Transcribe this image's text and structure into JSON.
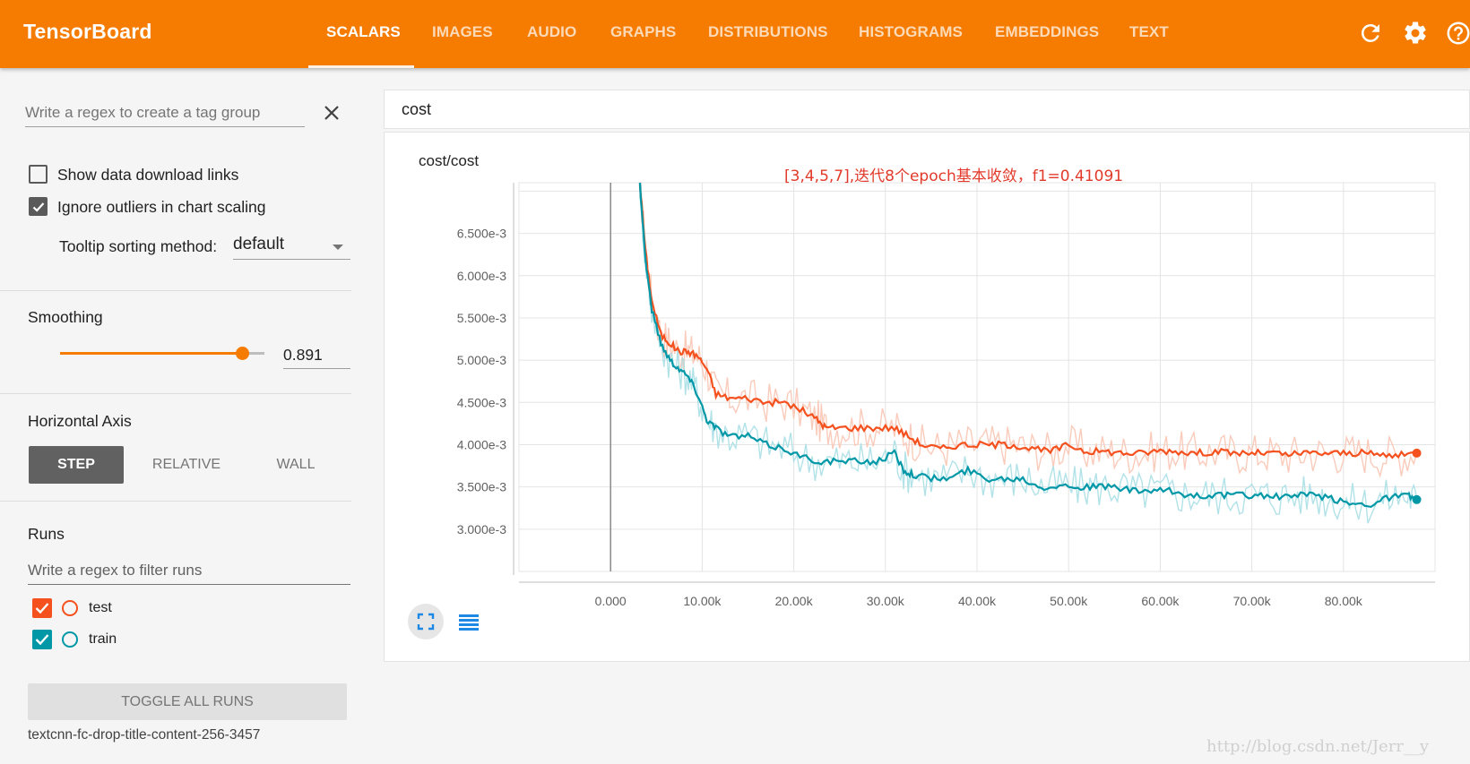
{
  "app": {
    "title": "TensorBoard"
  },
  "header": {
    "tabs": [
      {
        "label": "SCALARS",
        "active": true
      },
      {
        "label": "IMAGES"
      },
      {
        "label": "AUDIO"
      },
      {
        "label": "GRAPHS"
      },
      {
        "label": "DISTRIBUTIONS"
      },
      {
        "label": "HISTOGRAMS"
      },
      {
        "label": "EMBEDDINGS"
      },
      {
        "label": "TEXT"
      }
    ],
    "icons": [
      "refresh-icon",
      "settings-gear-icon",
      "help-icon"
    ]
  },
  "sidebar": {
    "tag_regex": {
      "placeholder": "Write a regex to create a tag group",
      "value": ""
    },
    "show_download_links": {
      "label": "Show data download links",
      "checked": false
    },
    "ignore_outliers": {
      "label": "Ignore outliers in chart scaling",
      "checked": true
    },
    "tooltip_sorting": {
      "label": "Tooltip sorting method:",
      "value": "default"
    },
    "smoothing": {
      "title": "Smoothing",
      "value": "0.891",
      "fraction": 0.891
    },
    "horizontal_axis": {
      "title": "Horizontal Axis",
      "options": [
        "STEP",
        "RELATIVE",
        "WALL"
      ],
      "selected": "STEP"
    },
    "runs": {
      "title": "Runs",
      "filter_placeholder": "Write a regex to filter runs",
      "items": [
        {
          "name": "test",
          "checked": true,
          "color": "#f4511e"
        },
        {
          "name": "train",
          "checked": true,
          "color": "#0097a7"
        }
      ],
      "toggle_label": "TOGGLE ALL RUNS",
      "log_dir": "textcnn-fc-drop-title-content-256-3457"
    }
  },
  "main": {
    "tag_group": "cost",
    "chart": {
      "title": "cost/cost",
      "annotation": "[3,4,5,7],迭代8个epoch基本收敛，f1=0.41091"
    }
  },
  "watermark": "http://blog.csdn.net/Jerr__y",
  "chart_data": {
    "type": "line",
    "title": "cost/cost",
    "xlabel": "",
    "ylabel": "",
    "x_tick_labels": [
      "0.000",
      "10.00k",
      "20.00k",
      "30.00k",
      "40.00k",
      "50.00k",
      "60.00k",
      "70.00k",
      "80.00k"
    ],
    "y_tick_labels": [
      "3.000e-3",
      "3.500e-3",
      "4.000e-3",
      "4.500e-3",
      "5.000e-3",
      "5.500e-3",
      "6.000e-3",
      "6.500e-3"
    ],
    "xlim": [
      -10000,
      90000
    ],
    "ylim": [
      0.0025,
      0.0071
    ],
    "grid": true,
    "series": [
      {
        "name": "test",
        "color": "#f4511e",
        "points": [
          [
            3200,
            0.0071
          ],
          [
            3800,
            0.0063
          ],
          [
            4500,
            0.0057
          ],
          [
            5500,
            0.0053
          ],
          [
            6500,
            0.0052
          ],
          [
            7500,
            0.0051
          ],
          [
            8500,
            0.0051
          ],
          [
            9500,
            0.00505
          ],
          [
            10500,
            0.0049
          ],
          [
            11500,
            0.0046
          ],
          [
            13000,
            0.00455
          ],
          [
            15000,
            0.00455
          ],
          [
            17000,
            0.0045
          ],
          [
            19000,
            0.0045
          ],
          [
            21000,
            0.0044
          ],
          [
            22500,
            0.0043
          ],
          [
            23500,
            0.0042
          ],
          [
            25000,
            0.0042
          ],
          [
            27000,
            0.0042
          ],
          [
            29000,
            0.0042
          ],
          [
            31000,
            0.0042
          ],
          [
            32500,
            0.0041
          ],
          [
            34000,
            0.004
          ],
          [
            36000,
            0.00395
          ],
          [
            38000,
            0.004
          ],
          [
            40000,
            0.004
          ],
          [
            42000,
            0.004
          ],
          [
            44000,
            0.004
          ],
          [
            46000,
            0.00395
          ],
          [
            48000,
            0.00392
          ],
          [
            50000,
            0.004
          ],
          [
            52000,
            0.00392
          ],
          [
            54000,
            0.00392
          ],
          [
            56000,
            0.0039
          ],
          [
            58000,
            0.0039
          ],
          [
            60000,
            0.00393
          ],
          [
            62000,
            0.00392
          ],
          [
            64000,
            0.0039
          ],
          [
            66000,
            0.00392
          ],
          [
            68000,
            0.0039
          ],
          [
            70000,
            0.0039
          ],
          [
            72000,
            0.0039
          ],
          [
            74000,
            0.00388
          ],
          [
            76000,
            0.0039
          ],
          [
            78000,
            0.0039
          ],
          [
            80000,
            0.0039
          ],
          [
            82000,
            0.0039
          ],
          [
            84000,
            0.00388
          ],
          [
            86000,
            0.00387
          ],
          [
            88000,
            0.0039
          ]
        ]
      },
      {
        "name": "train",
        "color": "#0097a7",
        "points": [
          [
            3200,
            0.0071
          ],
          [
            3800,
            0.0062
          ],
          [
            4500,
            0.0056
          ],
          [
            5500,
            0.0052
          ],
          [
            6500,
            0.005
          ],
          [
            7500,
            0.0049
          ],
          [
            8500,
            0.0048
          ],
          [
            9500,
            0.0046
          ],
          [
            10500,
            0.0043
          ],
          [
            11500,
            0.0042
          ],
          [
            13000,
            0.0041
          ],
          [
            15000,
            0.0041
          ],
          [
            17000,
            0.004
          ],
          [
            19000,
            0.00395
          ],
          [
            21000,
            0.00385
          ],
          [
            23000,
            0.0038
          ],
          [
            25000,
            0.0038
          ],
          [
            27000,
            0.0038
          ],
          [
            29000,
            0.0038
          ],
          [
            31000,
            0.0039
          ],
          [
            32000,
            0.0037
          ],
          [
            33000,
            0.00365
          ],
          [
            35000,
            0.0036
          ],
          [
            37000,
            0.0036
          ],
          [
            39000,
            0.0037
          ],
          [
            41000,
            0.0036
          ],
          [
            43000,
            0.0036
          ],
          [
            45000,
            0.0036
          ],
          [
            47000,
            0.0035
          ],
          [
            49000,
            0.00352
          ],
          [
            51000,
            0.0035
          ],
          [
            53000,
            0.0035
          ],
          [
            55000,
            0.0035
          ],
          [
            57000,
            0.00345
          ],
          [
            59000,
            0.00345
          ],
          [
            61000,
            0.00345
          ],
          [
            63000,
            0.0034
          ],
          [
            65000,
            0.0034
          ],
          [
            67000,
            0.0034
          ],
          [
            69000,
            0.0034
          ],
          [
            71000,
            0.0034
          ],
          [
            73000,
            0.00338
          ],
          [
            75000,
            0.0034
          ],
          [
            77000,
            0.0034
          ],
          [
            79000,
            0.00335
          ],
          [
            81000,
            0.0033
          ],
          [
            83000,
            0.0033
          ],
          [
            85000,
            0.00338
          ],
          [
            87000,
            0.0034
          ],
          [
            88000,
            0.00335
          ]
        ]
      }
    ]
  }
}
